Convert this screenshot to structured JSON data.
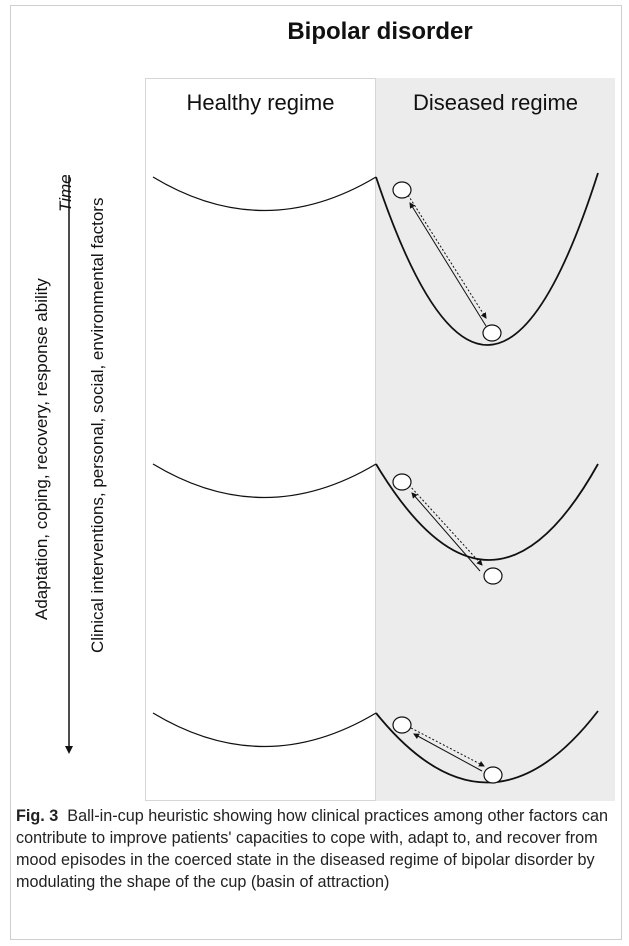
{
  "title": "Bipolar disorder",
  "regimes": {
    "healthy_label": "Healthy regime",
    "diseased_label": "Diseased regime"
  },
  "axes": {
    "time_label": "Time",
    "left_factor": "Adaptation, coping, recovery, response ability",
    "right_factor": "Clinical interventions, personal, social, environmental factors"
  },
  "caption": {
    "label": "Fig. 3",
    "text": "Ball-in-cup heuristic showing how clinical practices among other factors can contribute to improve patients' capacities to cope with, adapt to, and recover from mood episodes in the coerced state in the diseased regime of bipolar disorder by modulating the shape of the cup (basin of attraction)"
  },
  "colors": {
    "diseased_background": "#ececec",
    "line": "#111111",
    "text": "#222222"
  }
}
